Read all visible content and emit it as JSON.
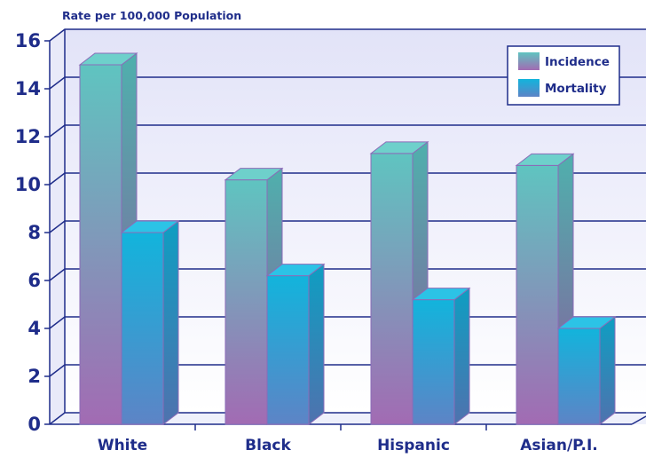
{
  "chart_data": {
    "type": "bar",
    "title": "",
    "ylabel": "Rate per 100,000 Population",
    "xlabel": "",
    "categories": [
      "White",
      "Black",
      "Hispanic",
      "Asian/P.I."
    ],
    "series": [
      {
        "name": "Incidence",
        "values": [
          15.0,
          10.2,
          11.3,
          10.8
        ]
      },
      {
        "name": "Mortality",
        "values": [
          8.0,
          6.2,
          5.2,
          4.0
        ]
      }
    ],
    "ylim": [
      0,
      16
    ],
    "yticks": [
      "0",
      "2",
      "4",
      "6",
      "8",
      "10",
      "12",
      "14",
      "16"
    ],
    "grid": true,
    "legend_position": "top-right",
    "colors": {
      "incidence_top": "#5fc4c0",
      "incidence_bottom": "#a26bb3",
      "mortality_top": "#12b4dc",
      "mortality_bottom": "#5d84c6",
      "axis": "#1f2d8a",
      "wall_top": "#e2e3f8",
      "wall_bottom": "#ffffff"
    }
  }
}
